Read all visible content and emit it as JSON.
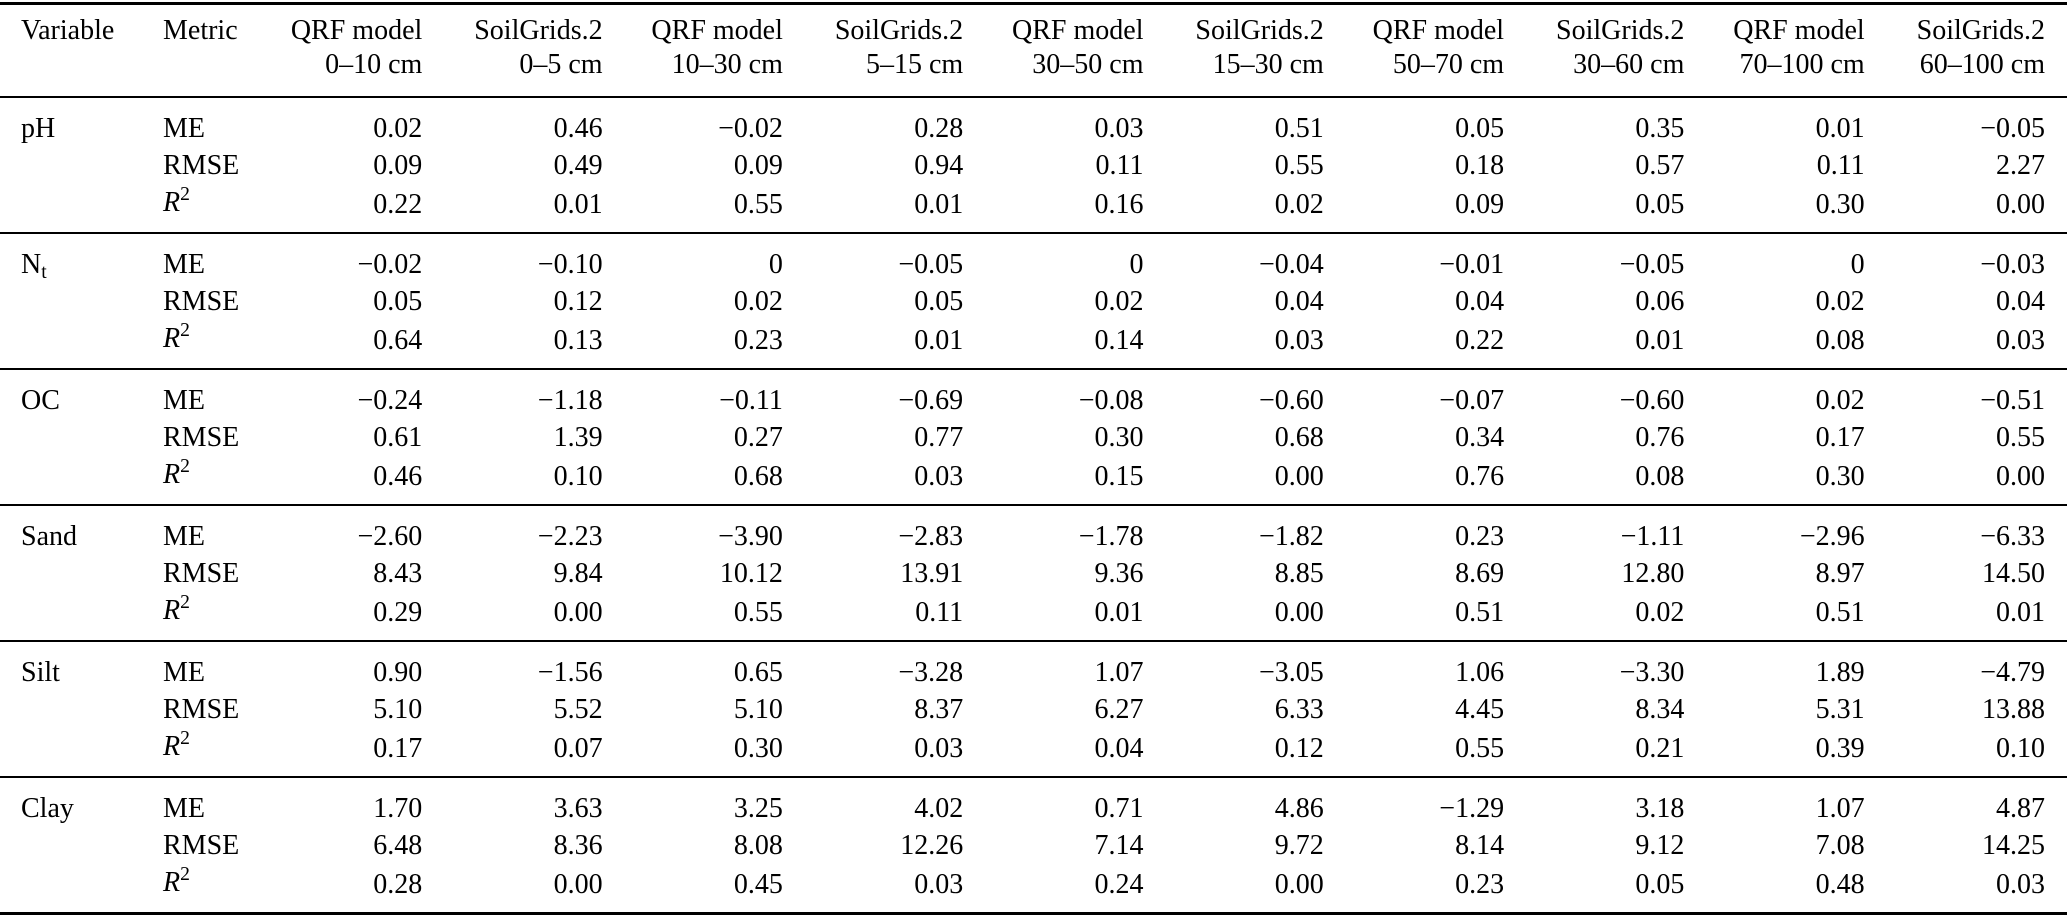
{
  "table": {
    "columns": [
      {
        "label": "Variable",
        "sub": ""
      },
      {
        "label": "Metric",
        "sub": ""
      },
      {
        "label": "QRF model",
        "sub": "0–10 cm"
      },
      {
        "label": "SoilGrids.2",
        "sub": "0–5 cm"
      },
      {
        "label": "QRF model",
        "sub": "10–30 cm"
      },
      {
        "label": "SoilGrids.2",
        "sub": "5–15 cm"
      },
      {
        "label": "QRF model",
        "sub": "30–50 cm"
      },
      {
        "label": "SoilGrids.2",
        "sub": "15–30 cm"
      },
      {
        "label": "QRF model",
        "sub": "50–70 cm"
      },
      {
        "label": "SoilGrids.2",
        "sub": "30–60 cm"
      },
      {
        "label": "QRF model",
        "sub": "70–100 cm"
      },
      {
        "label": "SoilGrids.2",
        "sub": "60–100 cm"
      }
    ],
    "groups": [
      {
        "variable": {
          "text": "pH"
        },
        "rows": [
          {
            "metric": {
              "text": "ME"
            },
            "values": [
              "0.02",
              "0.46",
              "−0.02",
              "0.28",
              "0.03",
              "0.51",
              "0.05",
              "0.35",
              "0.01",
              "−0.05"
            ]
          },
          {
            "metric": {
              "text": "RMSE"
            },
            "values": [
              "0.09",
              "0.49",
              "0.09",
              "0.94",
              "0.11",
              "0.55",
              "0.18",
              "0.57",
              "0.11",
              "2.27"
            ]
          },
          {
            "metric": {
              "text": "R",
              "sup": "2",
              "italic": true
            },
            "values": [
              "0.22",
              "0.01",
              "0.55",
              "0.01",
              "0.16",
              "0.02",
              "0.09",
              "0.05",
              "0.30",
              "0.00"
            ]
          }
        ]
      },
      {
        "variable": {
          "text": "N",
          "sub": "t"
        },
        "rows": [
          {
            "metric": {
              "text": "ME"
            },
            "values": [
              "−0.02",
              "−0.10",
              "0",
              "−0.05",
              "0",
              "−0.04",
              "−0.01",
              "−0.05",
              "0",
              "−0.03"
            ]
          },
          {
            "metric": {
              "text": "RMSE"
            },
            "values": [
              "0.05",
              "0.12",
              "0.02",
              "0.05",
              "0.02",
              "0.04",
              "0.04",
              "0.06",
              "0.02",
              "0.04"
            ]
          },
          {
            "metric": {
              "text": "R",
              "sup": "2",
              "italic": true
            },
            "values": [
              "0.64",
              "0.13",
              "0.23",
              "0.01",
              "0.14",
              "0.03",
              "0.22",
              "0.01",
              "0.08",
              "0.03"
            ]
          }
        ]
      },
      {
        "variable": {
          "text": "OC"
        },
        "rows": [
          {
            "metric": {
              "text": "ME"
            },
            "values": [
              "−0.24",
              "−1.18",
              "−0.11",
              "−0.69",
              "−0.08",
              "−0.60",
              "−0.07",
              "−0.60",
              "0.02",
              "−0.51"
            ]
          },
          {
            "metric": {
              "text": "RMSE"
            },
            "values": [
              "0.61",
              "1.39",
              "0.27",
              "0.77",
              "0.30",
              "0.68",
              "0.34",
              "0.76",
              "0.17",
              "0.55"
            ]
          },
          {
            "metric": {
              "text": "R",
              "sup": "2",
              "italic": true
            },
            "values": [
              "0.46",
              "0.10",
              "0.68",
              "0.03",
              "0.15",
              "0.00",
              "0.76",
              "0.08",
              "0.30",
              "0.00"
            ]
          }
        ]
      },
      {
        "variable": {
          "text": "Sand"
        },
        "rows": [
          {
            "metric": {
              "text": "ME"
            },
            "values": [
              "−2.60",
              "−2.23",
              "−3.90",
              "−2.83",
              "−1.78",
              "−1.82",
              "0.23",
              "−1.11",
              "−2.96",
              "−6.33"
            ]
          },
          {
            "metric": {
              "text": "RMSE"
            },
            "values": [
              "8.43",
              "9.84",
              "10.12",
              "13.91",
              "9.36",
              "8.85",
              "8.69",
              "12.80",
              "8.97",
              "14.50"
            ]
          },
          {
            "metric": {
              "text": "R",
              "sup": "2",
              "italic": true
            },
            "values": [
              "0.29",
              "0.00",
              "0.55",
              "0.11",
              "0.01",
              "0.00",
              "0.51",
              "0.02",
              "0.51",
              "0.01"
            ]
          }
        ]
      },
      {
        "variable": {
          "text": "Silt"
        },
        "rows": [
          {
            "metric": {
              "text": "ME"
            },
            "values": [
              "0.90",
              "−1.56",
              "0.65",
              "−3.28",
              "1.07",
              "−3.05",
              "1.06",
              "−3.30",
              "1.89",
              "−4.79"
            ]
          },
          {
            "metric": {
              "text": "RMSE"
            },
            "values": [
              "5.10",
              "5.52",
              "5.10",
              "8.37",
              "6.27",
              "6.33",
              "4.45",
              "8.34",
              "5.31",
              "13.88"
            ]
          },
          {
            "metric": {
              "text": "R",
              "sup": "2",
              "italic": true
            },
            "values": [
              "0.17",
              "0.07",
              "0.30",
              "0.03",
              "0.04",
              "0.12",
              "0.55",
              "0.21",
              "0.39",
              "0.10"
            ]
          }
        ]
      },
      {
        "variable": {
          "text": "Clay"
        },
        "rows": [
          {
            "metric": {
              "text": "ME"
            },
            "values": [
              "1.70",
              "3.63",
              "3.25",
              "4.02",
              "0.71",
              "4.86",
              "−1.29",
              "3.18",
              "1.07",
              "4.87"
            ]
          },
          {
            "metric": {
              "text": "RMSE"
            },
            "values": [
              "6.48",
              "8.36",
              "8.08",
              "12.26",
              "7.14",
              "9.72",
              "8.14",
              "9.12",
              "7.08",
              "14.25"
            ]
          },
          {
            "metric": {
              "text": "R",
              "sup": "2",
              "italic": true
            },
            "values": [
              "0.28",
              "0.00",
              "0.45",
              "0.03",
              "0.24",
              "0.00",
              "0.23",
              "0.05",
              "0.48",
              "0.03"
            ]
          }
        ]
      }
    ]
  }
}
